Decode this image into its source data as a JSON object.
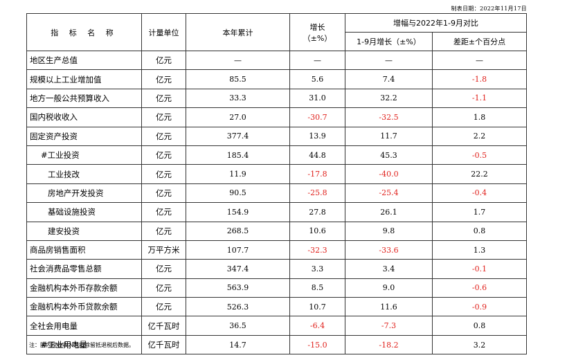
{
  "date_text": "制表日期：2022年11月17日",
  "header": {
    "indicator": "指 标 名 称",
    "unit": "计量单位",
    "ytd": "本年累计",
    "growth_line1": "增长",
    "growth_line2": "（±%）",
    "compare": "增幅与2022年1-9月对比",
    "growth_jan_sep": "1-9月增长（±%）",
    "diff": "差距±个百分点"
  },
  "rows": [
    {
      "name": "地区生产总值",
      "unit": "亿元",
      "ytd": "—",
      "growth": "—",
      "jan_sep": "—",
      "diff": "—",
      "indent": 0,
      "neg": [
        false,
        false,
        false
      ]
    },
    {
      "name": "规模以上工业增加值",
      "unit": "亿元",
      "ytd": "85.5",
      "growth": "5.6",
      "jan_sep": "7.4",
      "diff": "-1.8",
      "indent": 0,
      "neg": [
        false,
        false,
        true
      ]
    },
    {
      "name": "地方一般公共预算收入",
      "unit": "亿元",
      "ytd": "33.3",
      "growth": "31.0",
      "jan_sep": "32.2",
      "diff": "-1.1",
      "indent": 0,
      "neg": [
        false,
        false,
        true
      ]
    },
    {
      "name": "国内税收收入",
      "unit": "亿元",
      "ytd": "27.0",
      "growth": "-30.7",
      "jan_sep": "-32.5",
      "diff": "1.8",
      "indent": 0,
      "neg": [
        true,
        true,
        false
      ]
    },
    {
      "name": "固定资产投资",
      "unit": "亿元",
      "ytd": "377.4",
      "growth": "13.9",
      "jan_sep": "11.7",
      "diff": "2.2",
      "indent": 0,
      "neg": [
        false,
        false,
        false
      ]
    },
    {
      "name": "#工业投资",
      "unit": "亿元",
      "ytd": "185.4",
      "growth": "44.8",
      "jan_sep": "45.3",
      "diff": "-0.5",
      "indent": 1,
      "neg": [
        false,
        false,
        true
      ]
    },
    {
      "name": "工业技改",
      "unit": "亿元",
      "ytd": "11.9",
      "growth": "-17.8",
      "jan_sep": "-40.0",
      "diff": "22.2",
      "indent": 2,
      "neg": [
        true,
        true,
        false
      ]
    },
    {
      "name": "房地产开发投资",
      "unit": "亿元",
      "ytd": "90.5",
      "growth": "-25.8",
      "jan_sep": "-25.4",
      "diff": "-0.4",
      "indent": 2,
      "neg": [
        true,
        true,
        true
      ]
    },
    {
      "name": "基础设施投资",
      "unit": "亿元",
      "ytd": "154.9",
      "growth": "27.8",
      "jan_sep": "26.1",
      "diff": "1.7",
      "indent": 2,
      "neg": [
        false,
        false,
        false
      ]
    },
    {
      "name": "建安投资",
      "unit": "亿元",
      "ytd": "268.5",
      "growth": "10.6",
      "jan_sep": "9.8",
      "diff": "0.8",
      "indent": 2,
      "neg": [
        false,
        false,
        false
      ]
    },
    {
      "name": "商品房销售面积",
      "unit": "万平方米",
      "ytd": "107.7",
      "growth": "-32.3",
      "jan_sep": "-33.6",
      "diff": "1.3",
      "indent": 0,
      "neg": [
        true,
        true,
        false
      ]
    },
    {
      "name": "社会消费品零售总额",
      "unit": "亿元",
      "ytd": "347.4",
      "growth": "3.3",
      "jan_sep": "3.4",
      "diff": "-0.1",
      "indent": 0,
      "neg": [
        false,
        false,
        true
      ]
    },
    {
      "name": "金融机构本外币存款余额",
      "unit": "亿元",
      "ytd": "563.9",
      "growth": "8.5",
      "jan_sep": "9.0",
      "diff": "-0.6",
      "indent": 0,
      "neg": [
        false,
        false,
        true
      ]
    },
    {
      "name": "金融机构本外币贷款余额",
      "unit": "亿元",
      "ytd": "526.3",
      "growth": "10.7",
      "jan_sep": "11.6",
      "diff": "-0.9",
      "indent": 0,
      "neg": [
        false,
        false,
        true
      ]
    },
    {
      "name": "全社会用电量",
      "unit": "亿千瓦时",
      "ytd": "36.5",
      "growth": "-6.4",
      "jan_sep": "-7.3",
      "diff": "0.8",
      "indent": 0,
      "neg": [
        true,
        true,
        false
      ]
    },
    {
      "name": "#工业用电量",
      "unit": "亿千瓦时",
      "ytd": "14.7",
      "growth": "-15.0",
      "jan_sep": "-18.2",
      "diff": "3.2",
      "indent": 1,
      "neg": [
        true,
        true,
        false
      ]
    }
  ],
  "note": "注：国内税收收入为扣除留抵退税后数据。",
  "colors": {
    "negative": "#e0201b",
    "border": "#333333"
  }
}
